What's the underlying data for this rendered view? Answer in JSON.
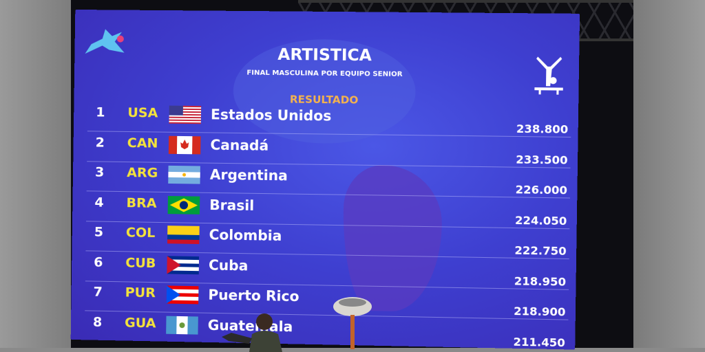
{
  "header": {
    "title": "ARTISTICA",
    "subtitle": "FINAL MASCULINA POR EQUIPO SENIOR",
    "section": "RESULTADO"
  },
  "icons": {
    "logo": "games-mascot-logo",
    "discipline": "gymnastics-pictogram"
  },
  "colors": {
    "board": "#3e3fd0",
    "code": "#f3e23c",
    "section": "#f3b24e",
    "text": "#ffffff"
  },
  "results": [
    {
      "rank": "1",
      "code": "USA",
      "flag": "usa",
      "name": "Estados Unidos",
      "score": "238.800"
    },
    {
      "rank": "2",
      "code": "CAN",
      "flag": "can",
      "name": "Canadá",
      "score": "233.500"
    },
    {
      "rank": "3",
      "code": "ARG",
      "flag": "arg",
      "name": "Argentina",
      "score": "226.000"
    },
    {
      "rank": "4",
      "code": "BRA",
      "flag": "bra",
      "name": "Brasil",
      "score": "224.050"
    },
    {
      "rank": "5",
      "code": "COL",
      "flag": "col",
      "name": "Colombia",
      "score": "222.750"
    },
    {
      "rank": "6",
      "code": "CUB",
      "flag": "cub",
      "name": "Cuba",
      "score": "218.950"
    },
    {
      "rank": "7",
      "code": "PUR",
      "flag": "pur",
      "name": "Puerto Rico",
      "score": "218.900"
    },
    {
      "rank": "8",
      "code": "GUA",
      "flag": "gua",
      "name": "Guatemala",
      "score": "211.450"
    }
  ]
}
